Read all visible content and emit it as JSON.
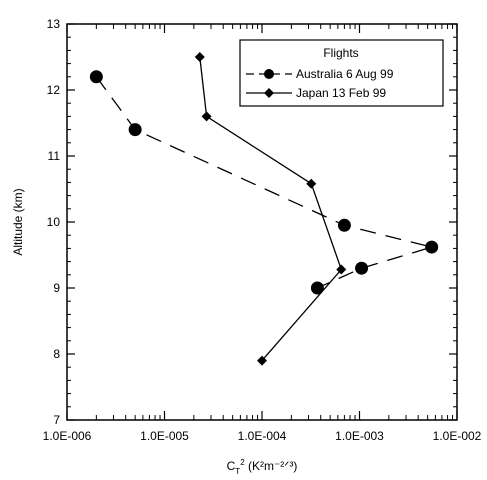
{
  "chart_data": {
    "type": "line",
    "xscale": "log",
    "xlim": [
      1e-06,
      0.01
    ],
    "ylim": [
      7,
      13
    ],
    "x_ticks": [
      {
        "value": 1e-06,
        "label": "1.0E-006"
      },
      {
        "value": 1e-05,
        "label": "1.0E-005"
      },
      {
        "value": 0.0001,
        "label": "1.0E-004"
      },
      {
        "value": 0.001,
        "label": "1.0E-003"
      },
      {
        "value": 0.01,
        "label": "1.0E-002"
      }
    ],
    "y_ticks": [
      {
        "value": 7,
        "label": "7"
      },
      {
        "value": 8,
        "label": "8"
      },
      {
        "value": 9,
        "label": "9"
      },
      {
        "value": 10,
        "label": "10"
      },
      {
        "value": 11,
        "label": "11"
      },
      {
        "value": 12,
        "label": "12"
      },
      {
        "value": 13,
        "label": "13"
      }
    ],
    "xlabel": {
      "main": "C",
      "sub": "T",
      "sup": "2",
      "units": " (K²m⁻²ᐟ³)"
    },
    "ylabel": "Altitude (km)",
    "legend": {
      "title": "Flights",
      "position": "top-right"
    },
    "series": [
      {
        "name": "Australia 6 Aug 99",
        "marker": "circle",
        "linestyle": "dashed",
        "points": [
          {
            "x": 2e-06,
            "y": 12.2
          },
          {
            "x": 5e-06,
            "y": 11.4
          },
          {
            "x": 0.0007,
            "y": 9.95
          },
          {
            "x": 0.0055,
            "y": 9.62
          },
          {
            "x": 0.00105,
            "y": 9.3
          },
          {
            "x": 0.00037,
            "y": 9.0
          }
        ]
      },
      {
        "name": "Japan 13 Feb 99",
        "marker": "diamond",
        "linestyle": "solid",
        "points": [
          {
            "x": 2.3e-05,
            "y": 12.5
          },
          {
            "x": 2.7e-05,
            "y": 11.6
          },
          {
            "x": 0.00032,
            "y": 10.58
          },
          {
            "x": 0.00065,
            "y": 9.28
          },
          {
            "x": 0.0001,
            "y": 7.9
          }
        ]
      }
    ],
    "colors": {
      "line": "#000000",
      "marker": "#000000"
    }
  }
}
